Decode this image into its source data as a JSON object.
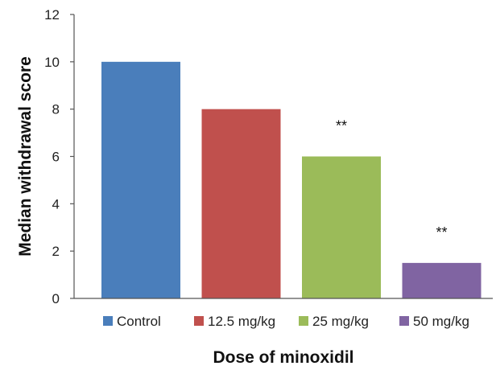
{
  "chart_data": {
    "type": "bar",
    "categories": [
      "Control",
      "12.5 mg/kg",
      "25 mg/kg",
      "50 mg/kg"
    ],
    "values": [
      10,
      8,
      6,
      1.5
    ],
    "colors": [
      "#4a7ebb",
      "#c0504d",
      "#9bbb59",
      "#8064a2"
    ],
    "annotations": [
      "",
      "",
      "**",
      "**"
    ],
    "xlabel": "Dose of minoxidil",
    "ylabel": "Median withdrawal score",
    "ylim": [
      0,
      12
    ],
    "yticks": [
      0,
      2,
      4,
      6,
      8,
      10,
      12
    ],
    "grid": false,
    "legend_position": "bottom"
  }
}
